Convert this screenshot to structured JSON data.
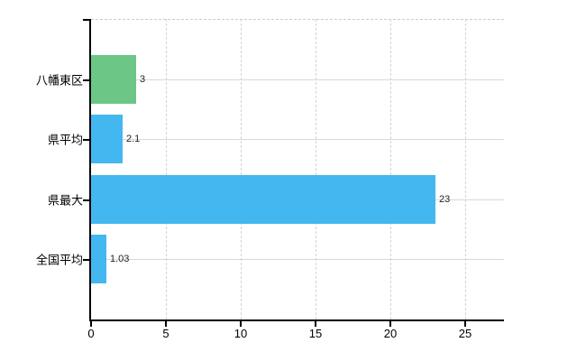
{
  "chart_data": {
    "type": "bar",
    "orientation": "horizontal",
    "title": "",
    "xlabel": "",
    "ylabel": "",
    "categories": [
      "八幡東区",
      "県平均",
      "県最大",
      "全国平均"
    ],
    "values": [
      3,
      2.1,
      23,
      1.03
    ],
    "value_labels": [
      "3",
      "2.1",
      "23",
      "1.03"
    ],
    "bar_colors": [
      "#6cc787",
      "#43b7ef",
      "#43b7ef",
      "#43b7ef"
    ],
    "x_ticks": [
      0,
      5,
      10,
      15,
      20,
      25
    ],
    "x_tick_labels": [
      "0",
      "5",
      "10",
      "15",
      "20",
      "25"
    ],
    "xlim": [
      0,
      27.6
    ],
    "grid": {
      "horizontal": "solid",
      "vertical": "dashed",
      "top_border": "dashed"
    },
    "legend_position": "none",
    "colors": {
      "bar_green": "#6cc787",
      "bar_blue": "#43b7ef",
      "axis": "#000000",
      "grid_horizontal": "#d6dcd2",
      "grid_vertical": "#d3d3d3",
      "top_border": "#cbcbcb",
      "category_text": "#000000",
      "value_text": "#222222",
      "background": "#ffffff"
    }
  }
}
